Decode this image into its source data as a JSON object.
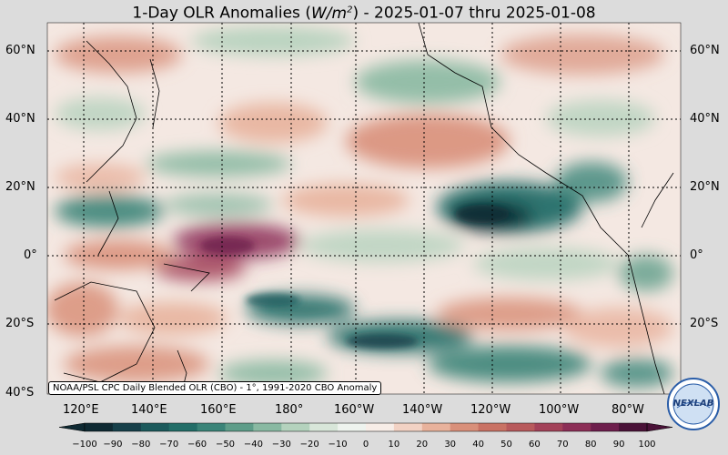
{
  "title": {
    "prefix": "1-Day OLR Anomalies (",
    "unit_base": "W/m",
    "unit_exp": "2",
    "suffix": ") - 2025-01-07 thru 2025-01-08"
  },
  "lat_labels": [
    "60°N",
    "40°N",
    "20°N",
    "0°",
    "20°S",
    "40°S"
  ],
  "lon_labels": [
    "120°E",
    "140°E",
    "160°E",
    "180°",
    "160°W",
    "140°W",
    "120°W",
    "100°W",
    "80°W"
  ],
  "caption": "NOAA/PSL CPC Daily Blended OLR (CBO) - 1°, 1991-2020 CBO Anomaly",
  "logo_text": "NEXLAB",
  "colorbar": {
    "ticks": [
      "−100",
      "−90",
      "−80",
      "−70",
      "−60",
      "−50",
      "−40",
      "−30",
      "−20",
      "−10",
      "0",
      "10",
      "20",
      "30",
      "40",
      "50",
      "60",
      "70",
      "80",
      "90",
      "100"
    ],
    "colors": [
      "#0f2a33",
      "#17404a",
      "#1c5a5c",
      "#236e68",
      "#3a8478",
      "#5e9d89",
      "#89b9a2",
      "#b4d2bd",
      "#d8e6d9",
      "#eef3ee",
      "#f7ede7",
      "#f2d2c4",
      "#e8b29c",
      "#d9907a",
      "#c97264",
      "#b85a5c",
      "#a34259",
      "#8c2f57",
      "#6e1f4d",
      "#4a1238"
    ]
  }
}
